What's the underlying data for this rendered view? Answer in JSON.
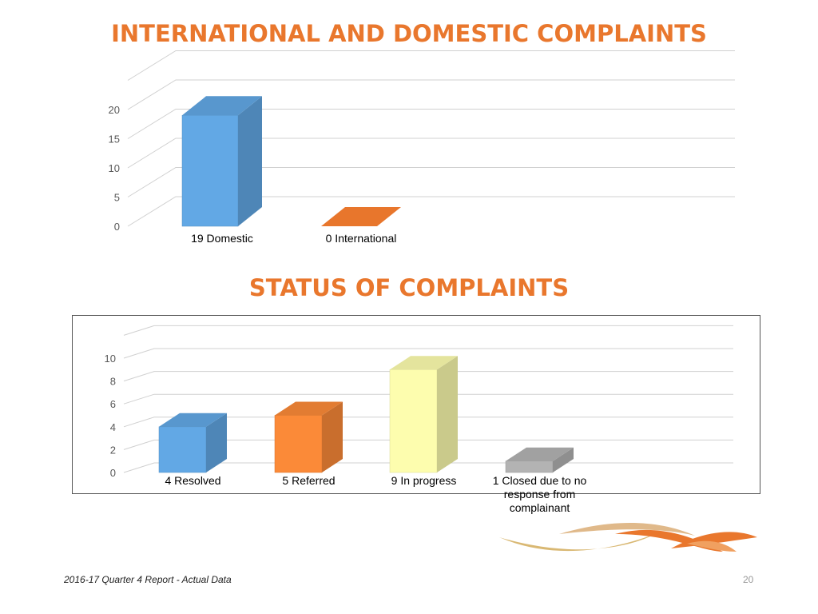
{
  "slide": {
    "title1": "INTERNATIONAL  AND DOMESTIC COMPLAINTS",
    "title2": "STATUS OF COMPLAINTS",
    "footer": "2016-17 Quarter 4 Report - Actual Data",
    "page_number": "20"
  },
  "chart_data": [
    {
      "type": "bar",
      "categories": [
        "19 Domestic",
        "0 International"
      ],
      "values": [
        19,
        0
      ],
      "colors": [
        "#62a8e5",
        "#e8762c"
      ],
      "ylim": [
        0,
        25
      ],
      "yticks": [
        0,
        5,
        10,
        15,
        20
      ],
      "grid": true,
      "style": "3d-column"
    },
    {
      "type": "bar",
      "categories": [
        "4 Resolved",
        "5 Referred",
        "9 In progress",
        "1 Closed due to no response from complainant"
      ],
      "values": [
        4,
        5,
        9,
        1
      ],
      "colors": [
        "#62a8e5",
        "#fb8a38",
        "#fdfdae",
        "#b3b3b3"
      ],
      "ylim": [
        0,
        12
      ],
      "yticks": [
        0,
        2,
        4,
        6,
        8,
        10
      ],
      "grid": true,
      "style": "3d-column"
    }
  ]
}
